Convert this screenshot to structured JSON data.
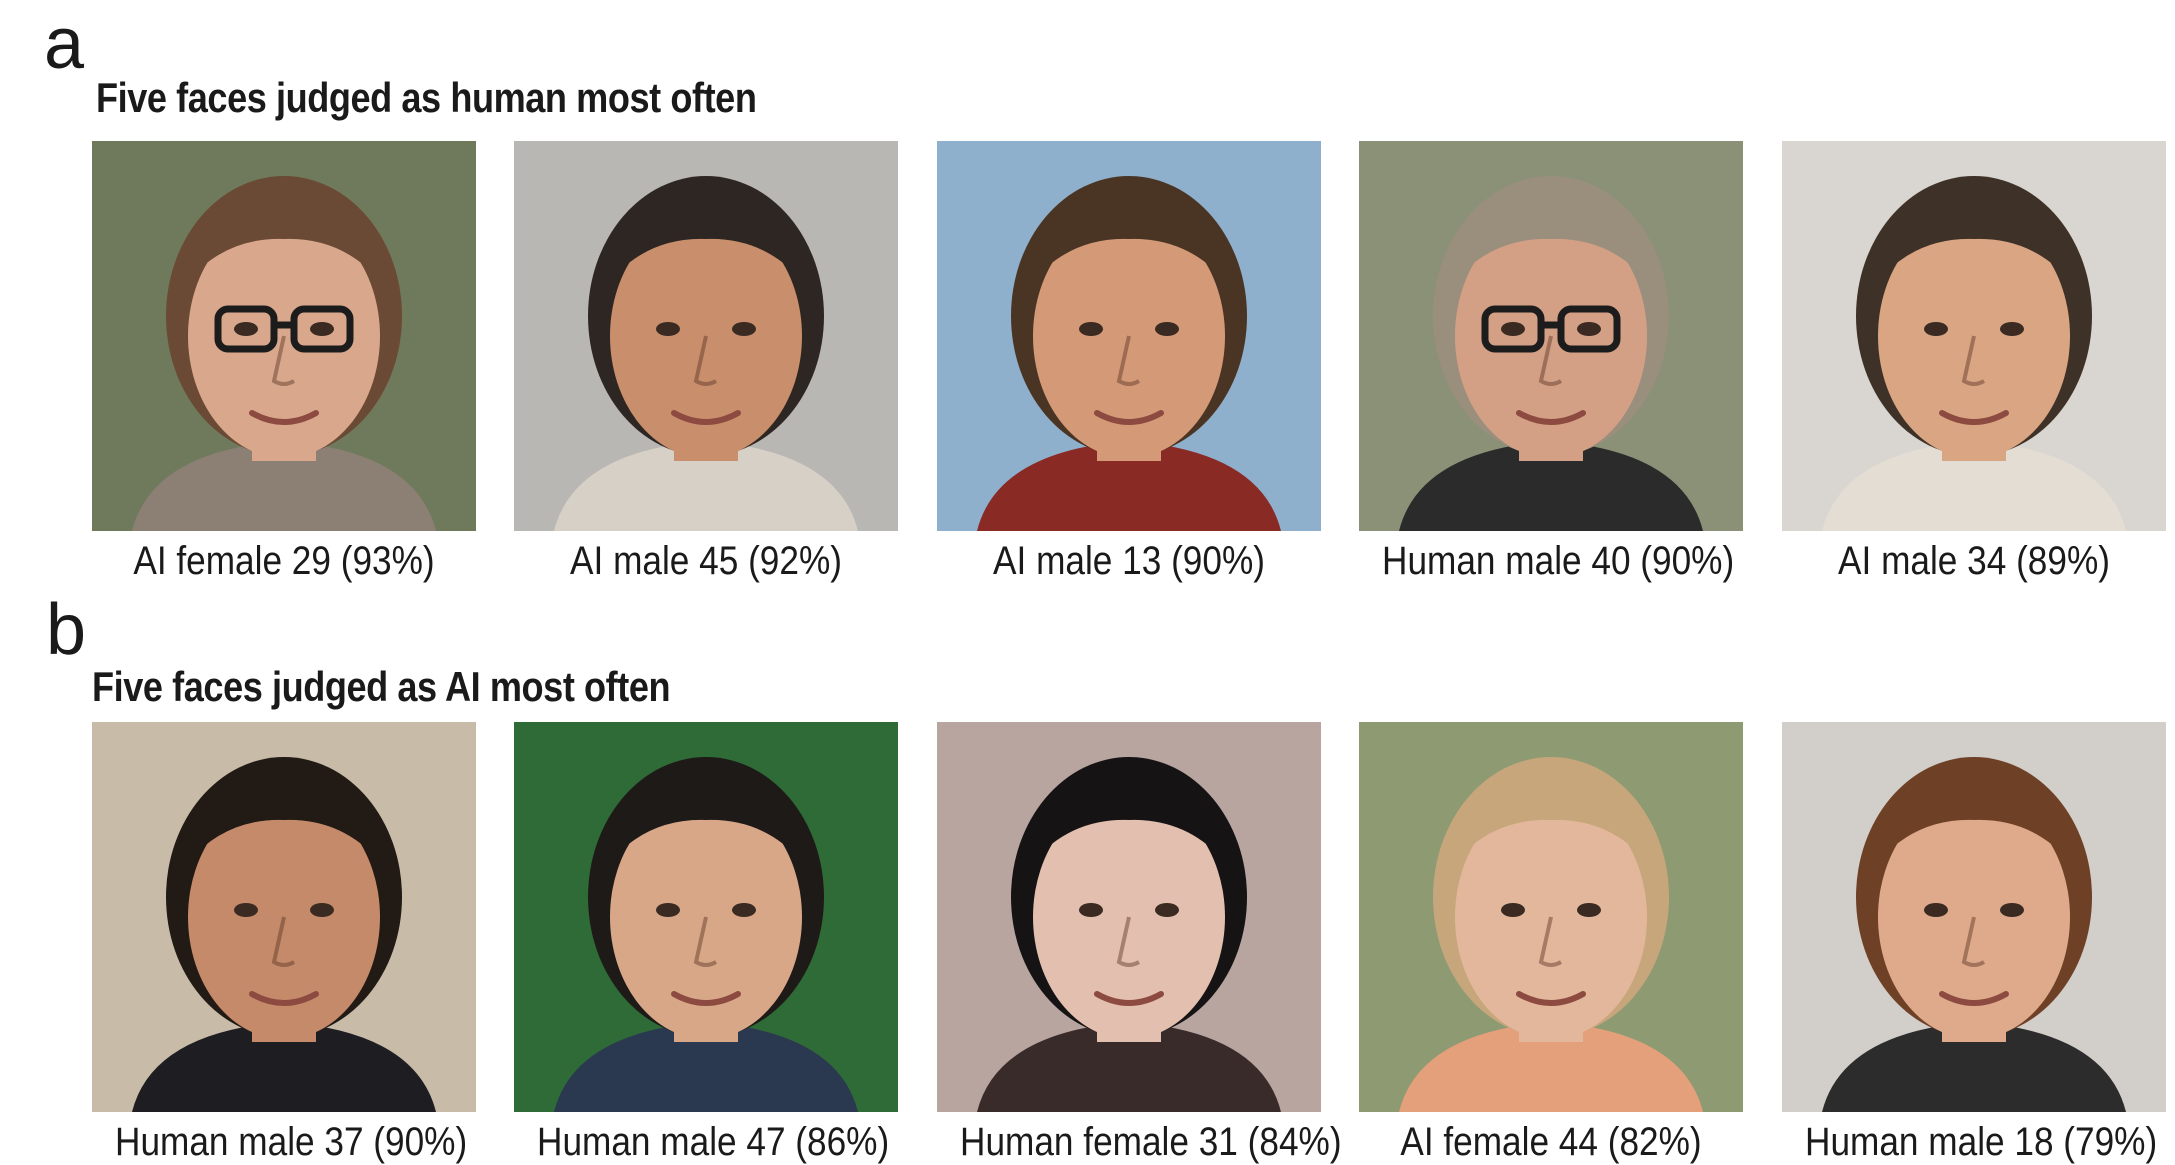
{
  "panels": [
    {
      "letter": "a",
      "title": "Five faces judged as human most often",
      "faces": [
        {
          "caption": "AI female 29 (93%)",
          "bg": "#6f7a5c",
          "skin": "#d9a88c",
          "hair": "#6b4a35",
          "shirt": "#8c7f73",
          "glasses": true
        },
        {
          "caption": "AI male 45 (92%)",
          "bg": "#b9b7b4",
          "skin": "#c98f6c",
          "hair": "#2d2622",
          "shirt": "#d7d0c6",
          "glasses": false
        },
        {
          "caption": "AI male 13 (90%)",
          "bg": "#8fb0cc",
          "skin": "#d49a78",
          "hair": "#4a3424",
          "shirt": "#8a2a25",
          "glasses": false
        },
        {
          "caption": "Human male 40 (90%)",
          "bg": "#8a9176",
          "skin": "#d3a086",
          "hair": "#9a8f7c",
          "shirt": "#2b2b2b",
          "glasses": true
        },
        {
          "caption": "AI male 34 (89%)",
          "bg": "#d9d6d1",
          "skin": "#d9a583",
          "hair": "#3e3128",
          "shirt": "#e4ddd4",
          "glasses": false
        }
      ]
    },
    {
      "letter": "b",
      "title": "Five faces judged as AI most often",
      "faces": [
        {
          "caption": "Human male 37 (90%)",
          "bg": "#c8bca8",
          "skin": "#c48a6a",
          "hair": "#221a15",
          "shirt": "#1e1e22",
          "glasses": false
        },
        {
          "caption": "Human male 47 (86%)",
          "bg": "#2f6b36",
          "skin": "#d8a788",
          "hair": "#1e1a18",
          "shirt": "#2a3950",
          "glasses": false
        },
        {
          "caption": "Human female 31 (84%)",
          "bg": "#b8a5a0",
          "skin": "#e2bfae",
          "hair": "#161314",
          "shirt": "#3a2b2b",
          "glasses": false
        },
        {
          "caption": "AI female 44 (82%)",
          "bg": "#8e9a72",
          "skin": "#e3b79b",
          "hair": "#c7a67c",
          "shirt": "#e4a07a",
          "glasses": false
        },
        {
          "caption": "Human male 18 (79%)",
          "bg": "#d2cec9",
          "skin": "#deaa8b",
          "hair": "#6e4127",
          "shirt": "#2c2c2c",
          "glasses": false
        }
      ]
    }
  ]
}
